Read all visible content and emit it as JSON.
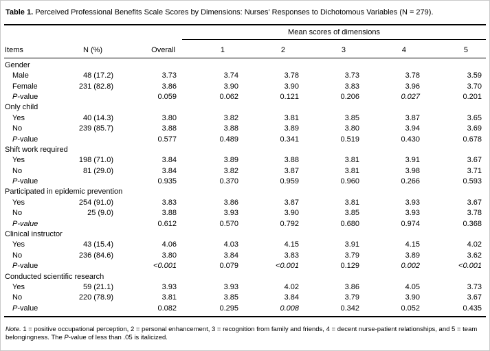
{
  "caption": {
    "label": "Table 1.",
    "text": " Perceived Professional Benefits Scale Scores by Dimensions: Nurses’ Responses to Dichotomous Variables (N = 279)."
  },
  "table": {
    "span_header": "Mean scores of dimensions",
    "columns": [
      "Items",
      "N (%)",
      "Overall",
      "1",
      "2",
      "3",
      "4",
      "5"
    ],
    "groups": [
      {
        "label": "Gender",
        "rows": [
          {
            "item": "Male",
            "n": "48 (17.2)",
            "values": [
              "3.73",
              "3.74",
              "3.78",
              "3.73",
              "3.78",
              "3.59"
            ]
          },
          {
            "item": "Female",
            "n": "231 (82.8)",
            "values": [
              "3.86",
              "3.90",
              "3.90",
              "3.83",
              "3.96",
              "3.70"
            ]
          },
          {
            "item": "P-value",
            "p": true,
            "n": "",
            "values": [
              "0.059",
              "0.062",
              "0.121",
              "0.206",
              "0.027",
              "0.201"
            ],
            "italics": [
              false,
              false,
              false,
              false,
              true,
              false
            ]
          }
        ]
      },
      {
        "label": "Only child",
        "rows": [
          {
            "item": "Yes",
            "n": "40 (14.3)",
            "values": [
              "3.80",
              "3.82",
              "3.81",
              "3.85",
              "3.87",
              "3.65"
            ]
          },
          {
            "item": "No",
            "n": "239 (85.7)",
            "values": [
              "3.88",
              "3.88",
              "3.89",
              "3.80",
              "3.94",
              "3.69"
            ]
          },
          {
            "item": "P-value",
            "p": true,
            "n": "",
            "values": [
              "0.577",
              "0.489",
              "0.341",
              "0.519",
              "0.430",
              "0.678"
            ]
          }
        ]
      },
      {
        "label": "Shift work required",
        "rows": [
          {
            "item": "Yes",
            "n": "198 (71.0)",
            "values": [
              "3.84",
              "3.89",
              "3.88",
              "3.81",
              "3.91",
              "3.67"
            ]
          },
          {
            "item": "No",
            "n": "81 (29.0)",
            "values": [
              "3.84",
              "3.82",
              "3.87",
              "3.81",
              "3.98",
              "3.71"
            ]
          },
          {
            "item": "P-value",
            "p": true,
            "n": "",
            "values": [
              "0.935",
              "0.370",
              "0.959",
              "0.960",
              "0.266",
              "0.593"
            ]
          }
        ]
      },
      {
        "label": "Participated in epidemic prevention",
        "rows": [
          {
            "item": "Yes",
            "n": "254 (91.0)",
            "values": [
              "3.83",
              "3.86",
              "3.87",
              "3.81",
              "3.93",
              "3.67"
            ]
          },
          {
            "item": "No",
            "n": "25 (9.0)",
            "values": [
              "3.88",
              "3.93",
              "3.90",
              "3.85",
              "3.93",
              "3.78"
            ]
          },
          {
            "item": "P-value",
            "p": true,
            "italicLabel": true,
            "n": "",
            "values": [
              "0.612",
              "0.570",
              "0.792",
              "0.680",
              "0.974",
              "0.368"
            ]
          }
        ]
      },
      {
        "label": "Clinical instructor",
        "rows": [
          {
            "item": "Yes",
            "n": "43 (15.4)",
            "values": [
              "4.06",
              "4.03",
              "4.15",
              "3.91",
              "4.15",
              "4.02"
            ]
          },
          {
            "item": "No",
            "n": "236 (84.6)",
            "values": [
              "3.80",
              "3.84",
              "3.83",
              "3.79",
              "3.89",
              "3.62"
            ]
          },
          {
            "item": "P-value",
            "p": true,
            "n": "",
            "values": [
              "<0.001",
              "0.079",
              "<0.001",
              "0.129",
              "0.002",
              "<0.001"
            ],
            "italics": [
              true,
              false,
              true,
              false,
              true,
              true
            ]
          }
        ]
      },
      {
        "label": "Conducted scientific research",
        "rows": [
          {
            "item": "Yes",
            "n": "59 (21.1)",
            "values": [
              "3.93",
              "3.93",
              "4.02",
              "3.86",
              "4.05",
              "3.73"
            ]
          },
          {
            "item": "No",
            "n": "220 (78.9)",
            "values": [
              "3.81",
              "3.85",
              "3.84",
              "3.79",
              "3.90",
              "3.67"
            ]
          },
          {
            "item": "P-value",
            "p": true,
            "n": "",
            "values": [
              "0.082",
              "0.295",
              "0.008",
              "0.342",
              "0.052",
              "0.435"
            ],
            "italics": [
              false,
              false,
              true,
              false,
              false,
              false
            ]
          }
        ]
      }
    ]
  },
  "note": {
    "parts": [
      {
        "text": "Note.",
        "style": "italic"
      },
      {
        "text": " 1 = positive occupational perception, 2 = personal enhancement, 3 = recognition from family and friends, 4 = decent nurse-patient relationships, and 5 = team belongingness. The ",
        "style": "normal"
      },
      {
        "text": "P",
        "style": "italic"
      },
      {
        "text": "-value of less than .05 is italicized.",
        "style": "normal"
      }
    ]
  }
}
